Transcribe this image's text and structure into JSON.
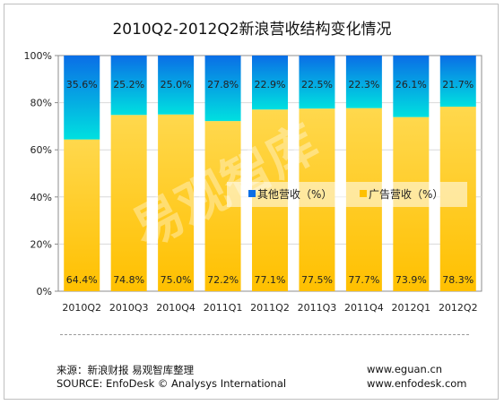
{
  "chart_data": {
    "type": "bar",
    "stacked": true,
    "title": "2010Q2-2012Q2新浪营收结构变化情况",
    "categories": [
      "2010Q2",
      "2010Q3",
      "2010Q4",
      "2011Q1",
      "2011Q2",
      "2011Q3",
      "2011Q4",
      "2012Q1",
      "2012Q2"
    ],
    "series": [
      {
        "name": "广告营收（%）",
        "values": [
          64.4,
          74.8,
          75.0,
          72.2,
          77.1,
          77.5,
          77.7,
          73.9,
          78.3
        ],
        "labels": [
          "64.4%",
          "74.8%",
          "75.0%",
          "72.2%",
          "77.1%",
          "77.5%",
          "77.7%",
          "73.9%",
          "78.3%"
        ]
      },
      {
        "name": "其他营收（%）",
        "values": [
          35.6,
          25.2,
          25.0,
          27.8,
          22.9,
          22.5,
          22.3,
          26.1,
          21.7
        ],
        "labels": [
          "35.6%",
          "25.2%",
          "25.0%",
          "27.8%",
          "22.9%",
          "22.5%",
          "22.3%",
          "26.1%",
          "21.7%"
        ]
      }
    ],
    "yticks": [
      "0%",
      "20%",
      "40%",
      "60%",
      "80%",
      "100%"
    ],
    "ylim": [
      0,
      100
    ],
    "legend_position": "center-right",
    "watermark": "易观智库",
    "colors": {
      "ad_bottom": "#ffc000",
      "ad_top": "#ffd84d",
      "other_bottom": "#00e0e0",
      "other_top": "#0a6ee6"
    }
  },
  "footer": {
    "source_cn": "来源：新浪财报 易观智库整理",
    "source_en": "SOURCE: EnfoDesk © Analysys International",
    "url1": "www.eguan.cn",
    "url2": "www.enfodesk.com"
  }
}
